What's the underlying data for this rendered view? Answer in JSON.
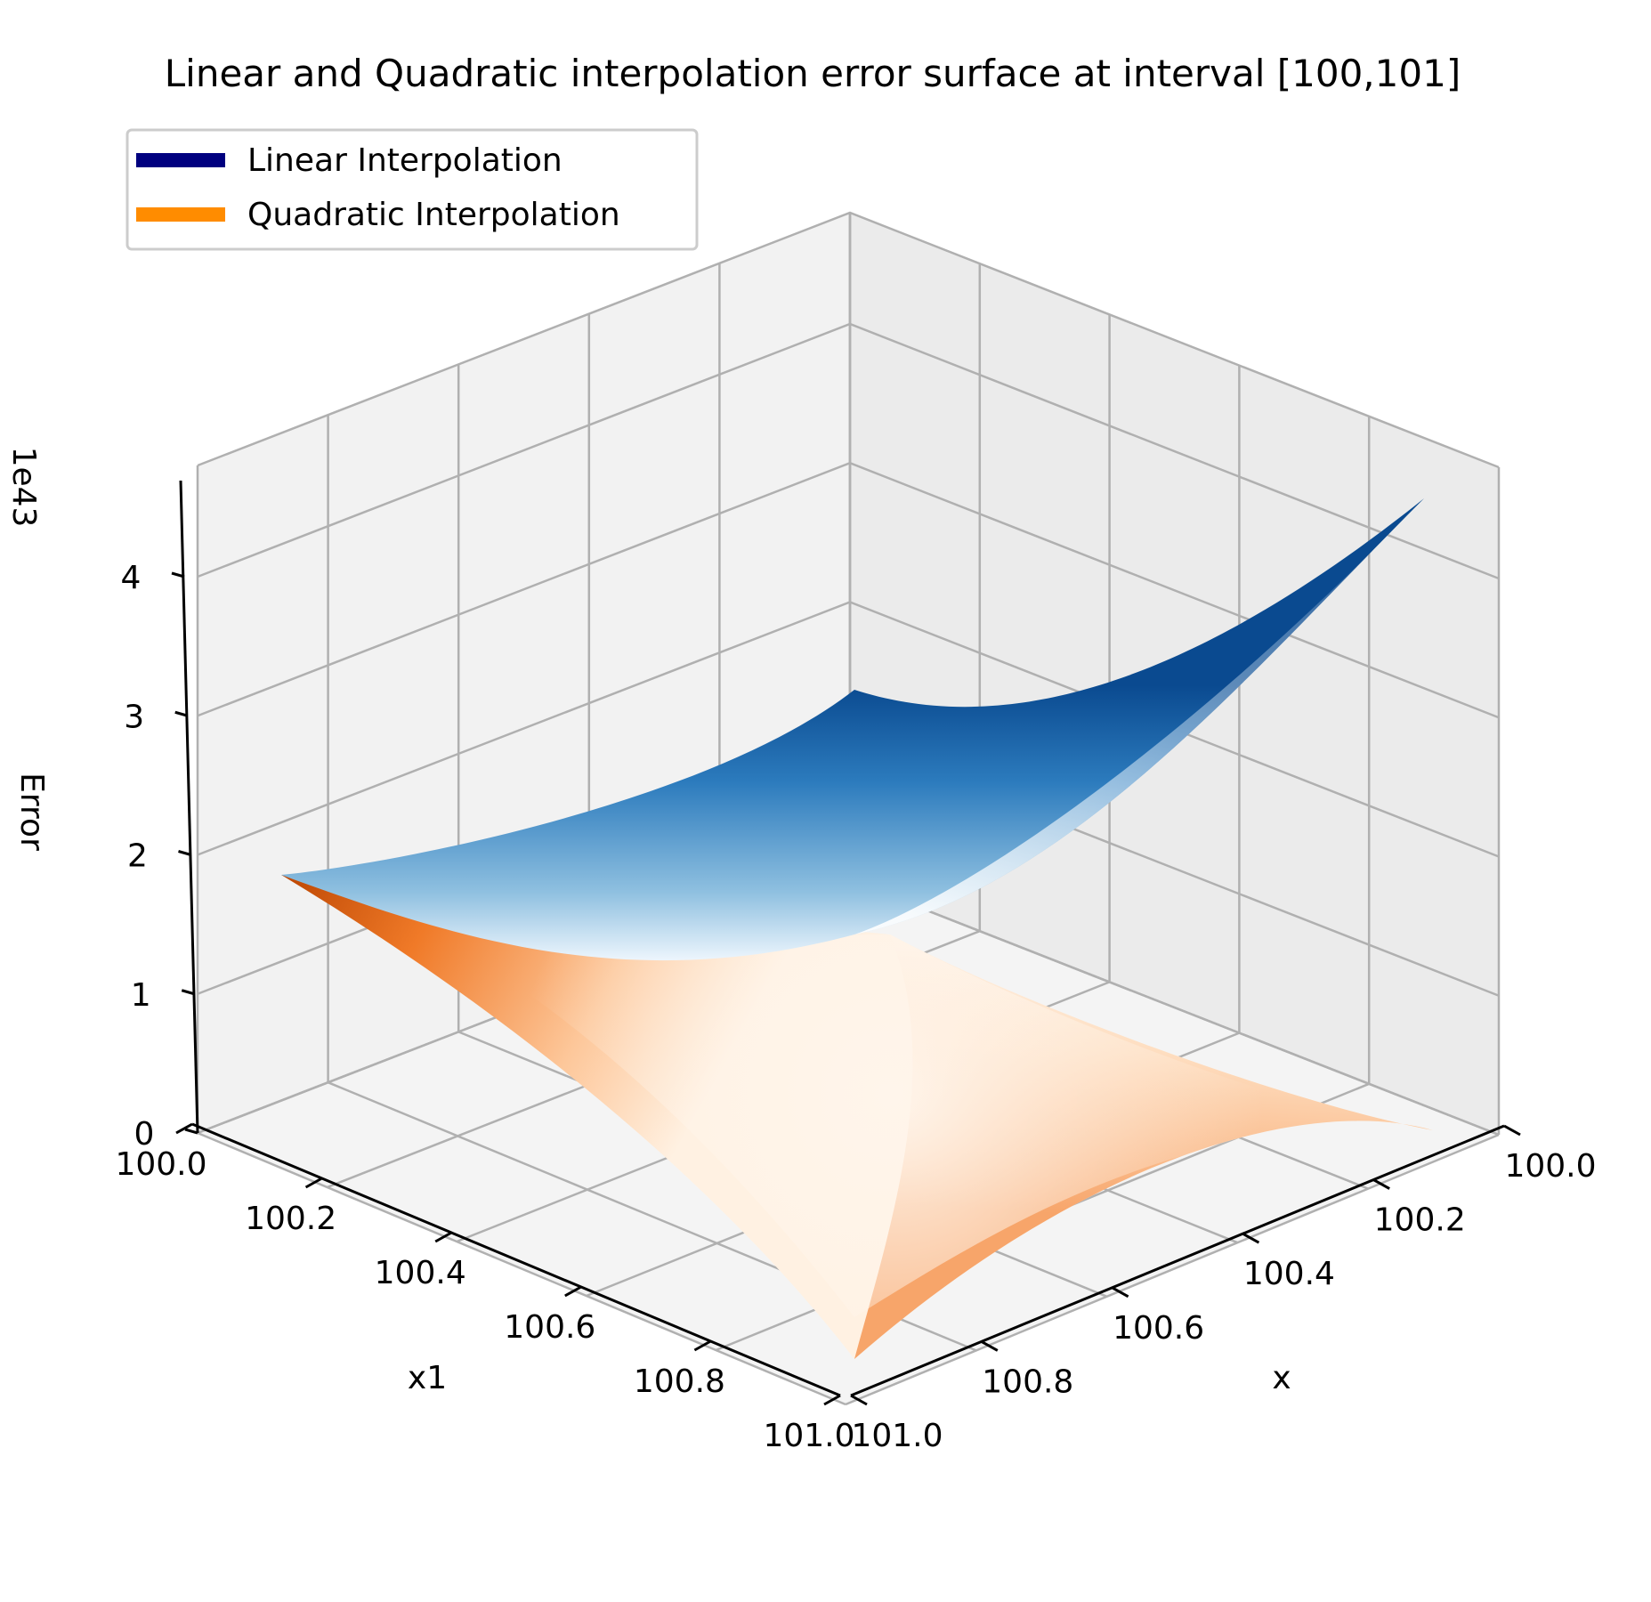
{
  "chart_data": {
    "type": "surface3d",
    "title": "Linear and Quadratic interpolation error surface at interval [100,101]",
    "x_axis": {
      "label": "x",
      "range": [
        100.0,
        101.0
      ],
      "ticks": [
        "100.0",
        "100.2",
        "100.4",
        "100.6",
        "100.8",
        "101.0"
      ]
    },
    "x1_axis": {
      "label": "x1",
      "range": [
        100.0,
        101.0
      ],
      "ticks": [
        "100.0",
        "100.2",
        "100.4",
        "100.6",
        "100.8",
        "101.0"
      ]
    },
    "z_axis": {
      "label": "Error",
      "offset_text": "1e43",
      "range": [
        0,
        4.8
      ],
      "ticks": [
        "0",
        "1",
        "2",
        "3",
        "4"
      ]
    },
    "grid": true,
    "legend": {
      "placement": "top-left"
    },
    "series": [
      {
        "name": "Linear Interpolation",
        "legend_color": "#00007f",
        "colormap": "Blues",
        "corner_values_1e43": {
          "x100_x1_100": 0.0,
          "x101_x1_100": 4.6,
          "x100_x1_101": 2.0,
          "x101_x1_101": 0.45
        }
      },
      {
        "name": "Quadratic Interpolation",
        "legend_color": "#ff8c00",
        "colormap": "Oranges",
        "corner_values_1e43": {
          "x100_x1_100": 0.0,
          "x101_x1_100": 0.0,
          "x100_x1_101": 2.0,
          "x101_x1_101": 0.0
        }
      }
    ]
  }
}
